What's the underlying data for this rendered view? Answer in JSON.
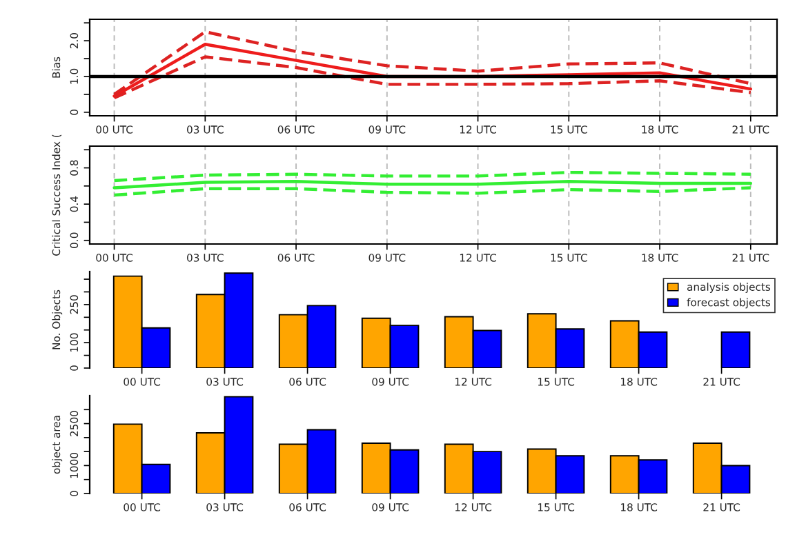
{
  "chart_data": [
    {
      "type": "line",
      "ylabel": "Bias",
      "categories": [
        "00 UTC",
        "03 UTC",
        "06 UTC",
        "09 UTC",
        "12 UTC",
        "15 UTC",
        "18 UTC",
        "21 UTC"
      ],
      "series": [
        {
          "color": "#ee1c1c",
          "line_style": "solid",
          "values": [
            0.45,
            1.9,
            1.45,
            1.0,
            1.0,
            1.05,
            1.1,
            0.65
          ]
        },
        {
          "color": "#dd2222",
          "line_style": "dashed",
          "values": [
            0.5,
            2.25,
            1.7,
            1.3,
            1.15,
            1.35,
            1.38,
            0.8
          ]
        },
        {
          "color": "#dd2222",
          "line_style": "dashed",
          "values": [
            0.4,
            1.55,
            1.25,
            0.78,
            0.78,
            0.8,
            0.88,
            0.55
          ]
        }
      ],
      "ylim": [
        -0.1,
        2.6
      ],
      "yticks": [
        0,
        {
          "value": 0.5,
          "label": null
        },
        {
          "value": 1,
          "label": "1.0"
        },
        {
          "value": 1.5,
          "label": null
        },
        {
          "value": 2,
          "label": "2.0"
        },
        {
          "value": 2.5,
          "label": null
        }
      ],
      "grid": "x",
      "ref_lines": [
        {
          "axis": "y",
          "value": 1,
          "color": "#000000"
        }
      ]
    },
    {
      "type": "line",
      "ylabel": "Critical Success Index (",
      "categories": [
        "00 UTC",
        "03 UTC",
        "06 UTC",
        "09 UTC",
        "12 UTC",
        "15 UTC",
        "18 UTC",
        "21 UTC"
      ],
      "series": [
        {
          "color": "#33ee33",
          "line_style": "solid",
          "values": [
            0.58,
            0.64,
            0.65,
            0.62,
            0.62,
            0.65,
            0.63,
            0.63
          ]
        },
        {
          "color": "#33ee33",
          "line_style": "dashed",
          "values": [
            0.66,
            0.72,
            0.73,
            0.71,
            0.71,
            0.75,
            0.74,
            0.73
          ]
        },
        {
          "color": "#33ee33",
          "line_style": "dashed",
          "values": [
            0.5,
            0.57,
            0.57,
            0.53,
            0.52,
            0.56,
            0.54,
            0.58
          ]
        }
      ],
      "ylim": [
        -0.04,
        1.04
      ],
      "yticks": [
        {
          "value": 0,
          "label": "0.0"
        },
        {
          "value": 0.2,
          "label": null
        },
        0.4,
        {
          "value": 0.6,
          "label": null
        },
        0.8,
        {
          "value": 1,
          "label": null
        }
      ],
      "grid": "x"
    },
    {
      "type": "bar",
      "ylabel": "No. Objects",
      "categories": [
        "00 UTC",
        "03 UTC",
        "06 UTC",
        "09 UTC",
        "12 UTC",
        "15 UTC",
        "18 UTC",
        "21 UTC"
      ],
      "series": [
        {
          "name": "analysis objects",
          "color": "#ffa500",
          "values": [
            362,
            290,
            210,
            196,
            202,
            214,
            186,
            null
          ]
        },
        {
          "name": "forecast objects",
          "color": "#0000ff",
          "values": [
            158,
            374,
            246,
            168,
            148,
            154,
            142,
            142
          ]
        }
      ],
      "ylim": [
        0,
        380
      ],
      "yticks": [
        0,
        {
          "value": 50,
          "label": null
        },
        100,
        {
          "value": 150,
          "label": null
        },
        {
          "value": 200,
          "label": null
        },
        250,
        {
          "value": 300,
          "label": null
        },
        {
          "value": 350,
          "label": null
        }
      ],
      "legend": "top right"
    },
    {
      "type": "bar",
      "ylabel": "object area",
      "categories": [
        "00 UTC",
        "03 UTC",
        "06 UTC",
        "09 UTC",
        "12 UTC",
        "15 UTC",
        "18 UTC",
        "21 UTC"
      ],
      "series": [
        {
          "color": "#ffa500",
          "values": [
            2480,
            2170,
            1760,
            1800,
            1760,
            1590,
            1350,
            1800
          ]
        },
        {
          "color": "#0000ff",
          "values": [
            1040,
            3460,
            2280,
            1560,
            1500,
            1350,
            1200,
            1000
          ]
        }
      ],
      "ylim": [
        0,
        3500
      ],
      "yticks": [
        0,
        {
          "value": 500,
          "label": null
        },
        1000,
        {
          "value": 1500,
          "label": null
        },
        {
          "value": 2000,
          "label": null
        },
        2500,
        {
          "value": 3000,
          "label": null
        }
      ]
    }
  ]
}
